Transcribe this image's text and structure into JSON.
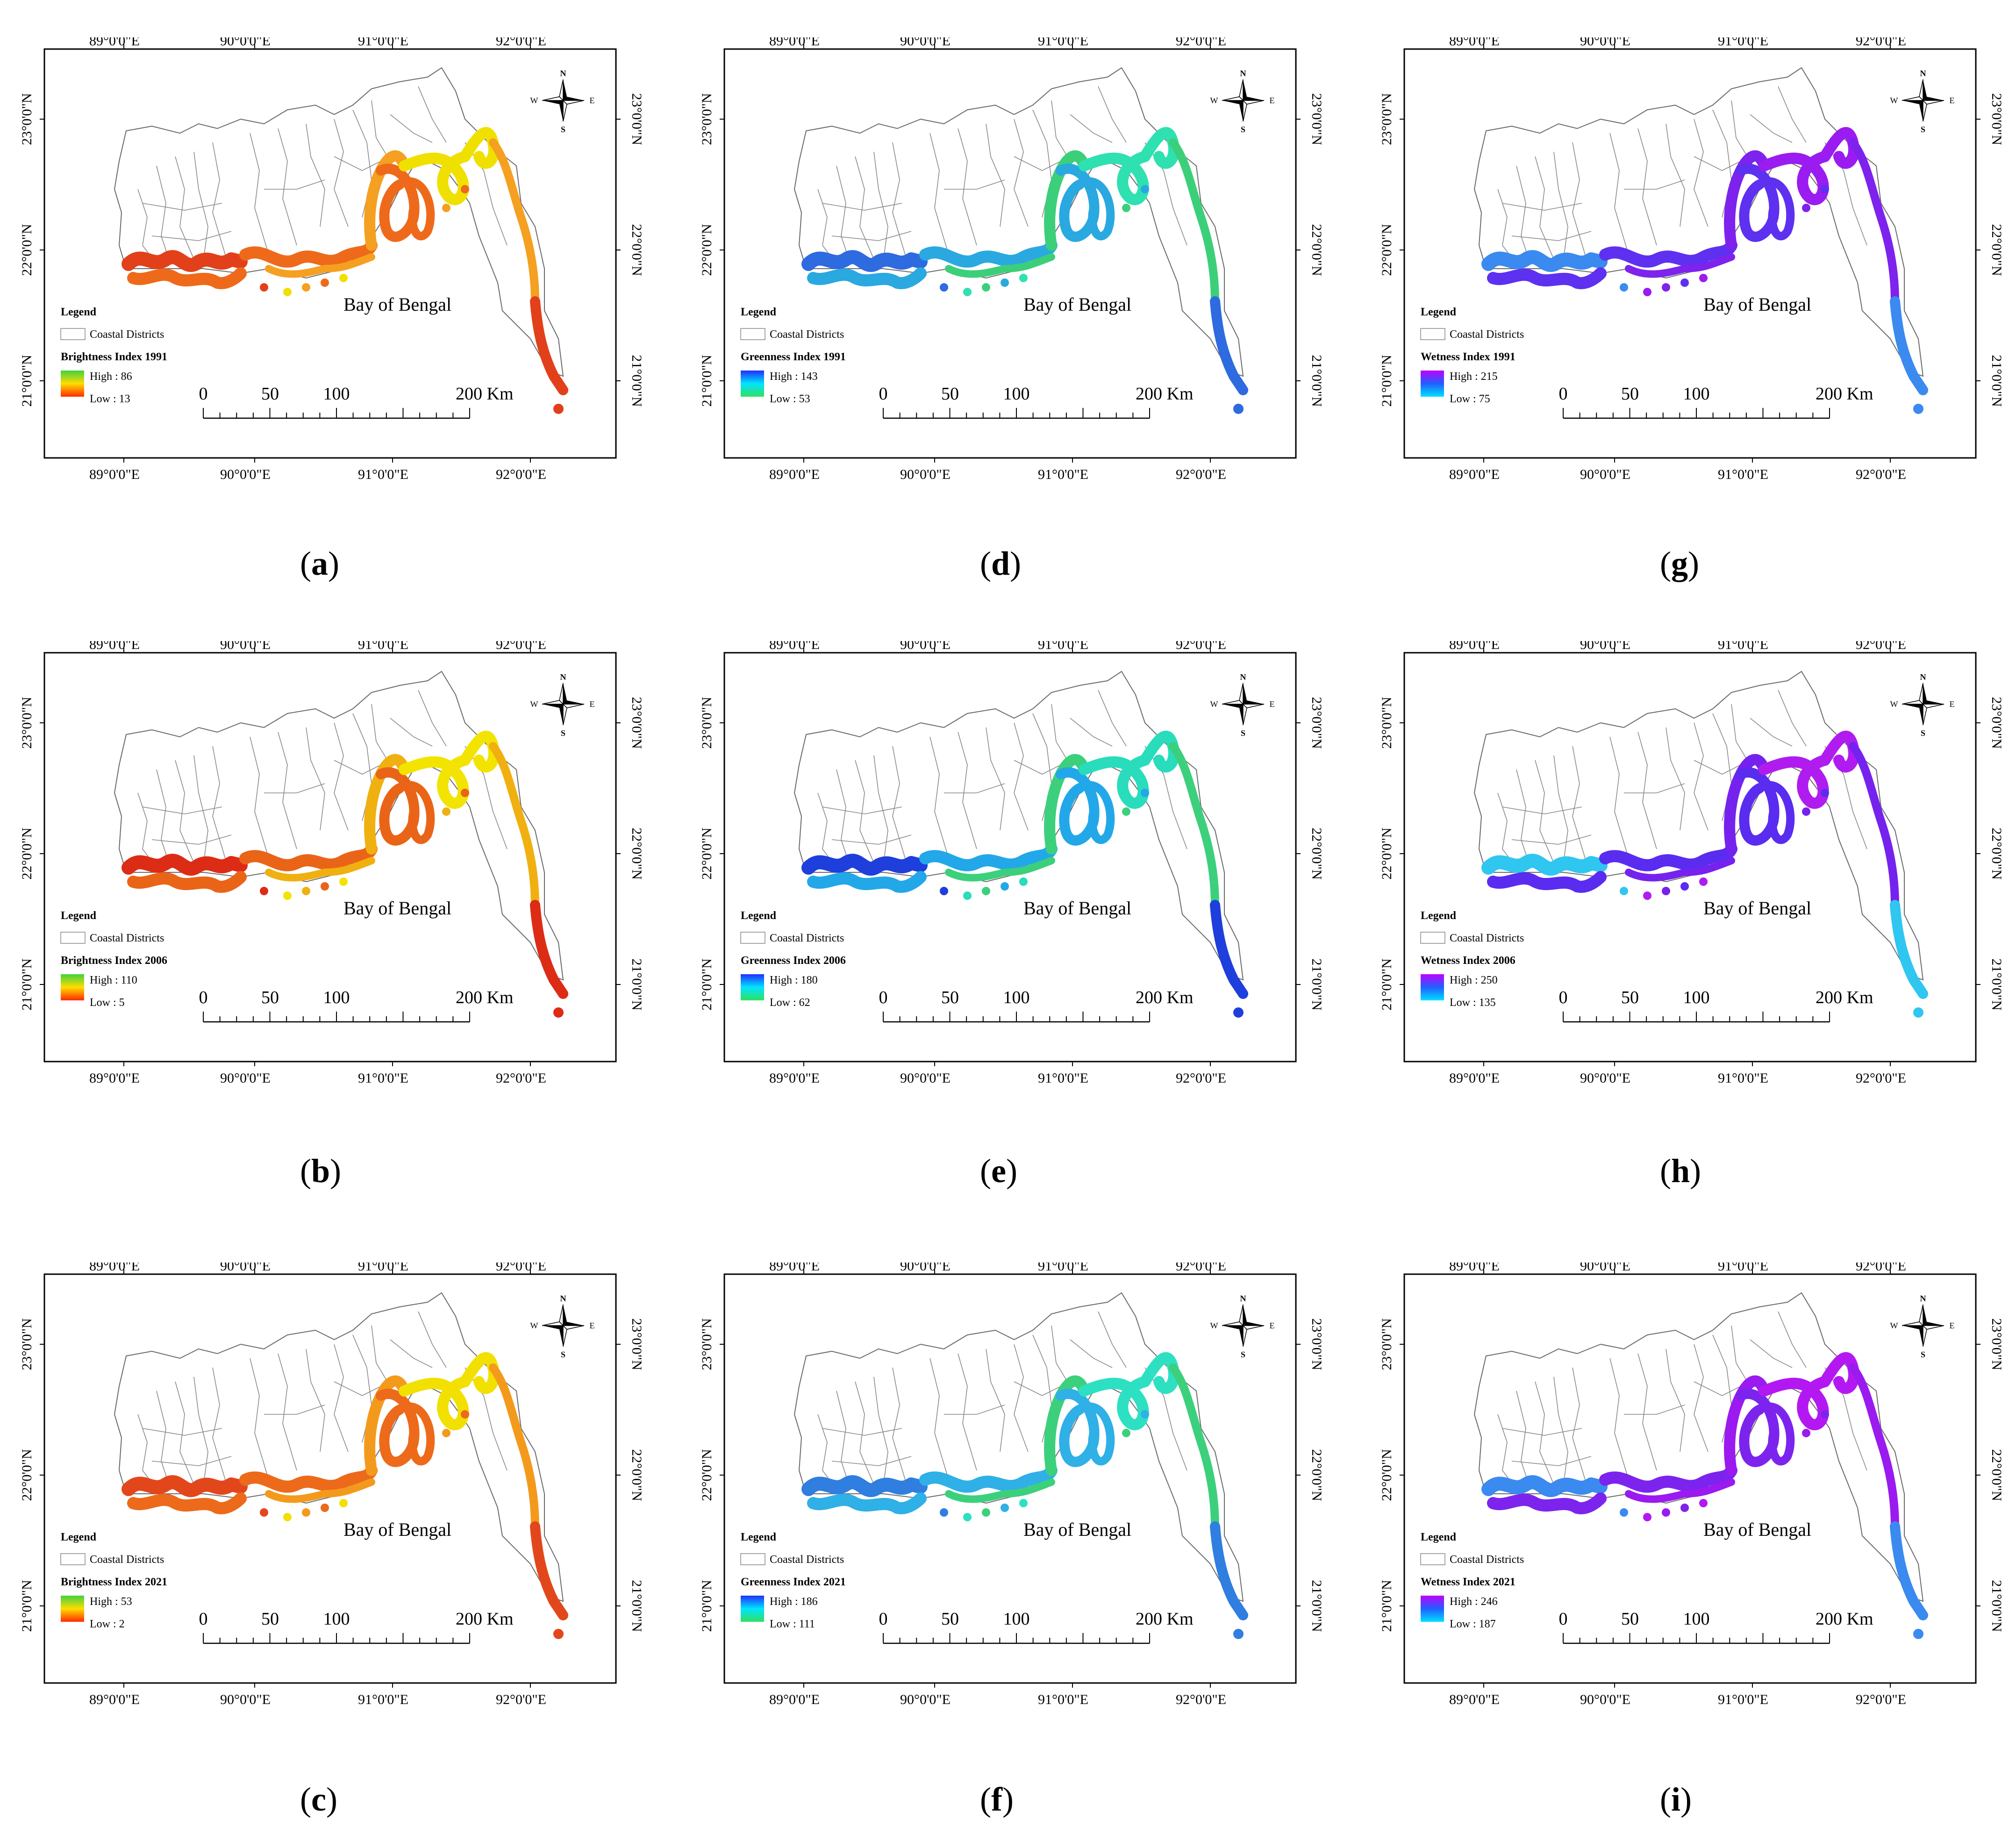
{
  "common": {
    "lon_labels": [
      "89°0'0\"E",
      "90°0'0\"E",
      "91°0'0\"E",
      "92°0'0\"E"
    ],
    "lat_labels": [
      "23°0'0\"N",
      "22°0'0\"N",
      "21°0'0\"N"
    ],
    "place_label": "Bay of Bengal",
    "legend_title": "Legend",
    "legend_districts": "Coastal Districts",
    "scale_labels": [
      "0",
      "50",
      "100",
      "200 Km"
    ],
    "north_arrow": {
      "n": "N",
      "s": "S",
      "e": "E",
      "w": "W"
    }
  },
  "panels": [
    {
      "letter": "a",
      "index_title": "Brightness Index 1991",
      "high": "High : 86",
      "low": "Low : 13",
      "colors": [
        "#f0e000",
        "#f5a020",
        "#ee6a1a",
        "#e2401a"
      ],
      "grad": [
        "#3fd23f",
        "#ffdd00",
        "#ff2a00"
      ]
    },
    {
      "letter": "b",
      "index_title": "Brightness Index 2006",
      "high": "High : 110",
      "low": "Low : 5",
      "colors": [
        "#f2e400",
        "#f0b010",
        "#ea6418",
        "#dc2c16"
      ],
      "grad": [
        "#3fd23f",
        "#ffdd00",
        "#ff2a00"
      ]
    },
    {
      "letter": "c",
      "index_title": "Brightness Index 2021",
      "high": "High : 53",
      "low": "Low : 2",
      "colors": [
        "#f2e000",
        "#f39a1c",
        "#ec6a1a",
        "#e2471c"
      ],
      "grad": [
        "#3fd23f",
        "#ffdd00",
        "#ff2a00"
      ]
    },
    {
      "letter": "d",
      "index_title": "Greenness Index 1991",
      "high": "High : 143",
      "low": "Low : 53",
      "colors": [
        "#2fe0b0",
        "#3ccf7a",
        "#2aa8e0",
        "#2e6ae0"
      ],
      "grad": [
        "#2030ff",
        "#00e5ff",
        "#30e060"
      ]
    },
    {
      "letter": "e",
      "index_title": "Greenness Index 2006",
      "high": "High : 180",
      "low": "Low : 62",
      "colors": [
        "#28dcbc",
        "#3cd07c",
        "#22a8e8",
        "#1e3fdc"
      ],
      "grad": [
        "#2030ff",
        "#00e5ff",
        "#30e060"
      ]
    },
    {
      "letter": "f",
      "index_title": "Greenness Index 2021",
      "high": "High : 186",
      "low": "Low : 111",
      "colors": [
        "#2ee0c2",
        "#3cd07c",
        "#2fb0e6",
        "#2f7ee0"
      ],
      "grad": [
        "#2030ff",
        "#00e5ff",
        "#30e060"
      ]
    },
    {
      "letter": "g",
      "index_title": "Wetness Index 1991",
      "high": "High : 215",
      "low": "Low : 75",
      "colors": [
        "#9a1cf0",
        "#7e22ee",
        "#5e30f0",
        "#3a8af0"
      ],
      "grad": [
        "#c000ff",
        "#2060ff",
        "#00e0ff"
      ]
    },
    {
      "letter": "h",
      "index_title": "Wetness Index 2006",
      "high": "High : 250",
      "low": "Low : 135",
      "colors": [
        "#b01cf0",
        "#7622ee",
        "#5a2cf0",
        "#2fc6f0"
      ],
      "grad": [
        "#c000ff",
        "#2060ff",
        "#00e0ff"
      ]
    },
    {
      "letter": "i",
      "index_title": "Wetness Index 2021",
      "high": "High : 246",
      "low": "Low : 187",
      "colors": [
        "#b418f2",
        "#9a1af0",
        "#7c24ee",
        "#3a8af0"
      ],
      "grad": [
        "#c000ff",
        "#2060ff",
        "#00e0ff"
      ]
    }
  ]
}
